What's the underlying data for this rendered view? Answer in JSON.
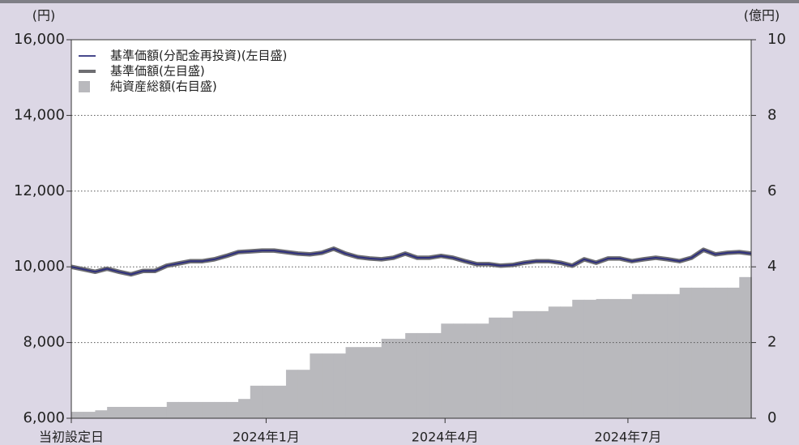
{
  "chart_data": {
    "type": "line",
    "ylabel": "(円)",
    "y2label": "(億円)",
    "x": [
      0,
      6,
      12,
      18,
      24,
      30,
      36,
      42,
      48,
      54,
      60,
      66,
      72,
      78,
      84,
      90,
      96,
      102,
      108,
      114,
      120,
      126,
      132,
      138,
      144,
      150,
      156,
      162,
      168,
      174,
      180,
      186,
      192,
      198,
      204,
      210,
      216,
      222,
      228,
      234,
      240,
      246,
      252,
      258,
      264,
      270,
      276,
      282,
      288,
      294,
      300,
      306,
      312,
      318,
      324,
      330,
      336,
      342
    ],
    "xlim": [
      0,
      342
    ],
    "xticks": [
      {
        "value": 0,
        "label": "当初設定日"
      },
      {
        "value": 98,
        "label": "2024年1月"
      },
      {
        "value": 188,
        "label": "2024年4月"
      },
      {
        "value": 280,
        "label": "2024年7月"
      }
    ],
    "ylim": [
      6000,
      16000
    ],
    "yticks": [
      {
        "value": 6000,
        "label": "6,000"
      },
      {
        "value": 8000,
        "label": "8,000"
      },
      {
        "value": 10000,
        "label": "10,000"
      },
      {
        "value": 12000,
        "label": "12,000"
      },
      {
        "value": 14000,
        "label": "14,000"
      },
      {
        "value": 16000,
        "label": "16,000"
      }
    ],
    "y2lim": [
      0,
      10
    ],
    "y2ticks": [
      0,
      2,
      4,
      6,
      8,
      10
    ],
    "grid": true,
    "legend": "upper left",
    "series": [
      {
        "name": "基準価額(分配金再投資)(左目盛)",
        "color": "#2e2f7c",
        "kind": "line",
        "values": [
          10000,
          9935,
          9870,
          9950,
          9870,
          9800,
          9890,
          9890,
          10030,
          10090,
          10150,
          10150,
          10200,
          10290,
          10390,
          10410,
          10430,
          10430,
          10390,
          10350,
          10330,
          10370,
          10480,
          10350,
          10260,
          10220,
          10200,
          10240,
          10350,
          10240,
          10240,
          10290,
          10240,
          10150,
          10070,
          10070,
          10030,
          10050,
          10110,
          10150,
          10150,
          10110,
          10030,
          10200,
          10110,
          10220,
          10220,
          10150,
          10200,
          10240,
          10200,
          10150,
          10240,
          10450,
          10330,
          10370,
          10390,
          10350
        ]
      },
      {
        "name": "基準価額(左目盛)",
        "color": "#6e6e72",
        "kind": "line",
        "values": [
          10000,
          9935,
          9870,
          9950,
          9870,
          9800,
          9890,
          9890,
          10030,
          10090,
          10150,
          10150,
          10200,
          10290,
          10390,
          10410,
          10430,
          10430,
          10390,
          10350,
          10330,
          10370,
          10480,
          10350,
          10260,
          10220,
          10200,
          10240,
          10350,
          10240,
          10240,
          10290,
          10240,
          10150,
          10070,
          10070,
          10030,
          10050,
          10110,
          10150,
          10150,
          10110,
          10030,
          10200,
          10110,
          10220,
          10220,
          10150,
          10200,
          10240,
          10200,
          10150,
          10240,
          10450,
          10330,
          10370,
          10390,
          10350
        ]
      },
      {
        "name": "純資産総額(右目盛)",
        "color": "#b9b9bd",
        "kind": "area",
        "axis": "y2",
        "values": [
          0.17,
          0.17,
          0.21,
          0.3,
          0.3,
          0.3,
          0.3,
          0.3,
          0.43,
          0.43,
          0.43,
          0.43,
          0.43,
          0.43,
          0.51,
          0.86,
          0.86,
          0.86,
          1.28,
          1.28,
          1.71,
          1.71,
          1.71,
          1.88,
          1.88,
          1.88,
          2.1,
          2.1,
          2.25,
          2.25,
          2.25,
          2.5,
          2.5,
          2.5,
          2.5,
          2.66,
          2.66,
          2.83,
          2.83,
          2.83,
          2.95,
          2.95,
          3.13,
          3.13,
          3.15,
          3.15,
          3.15,
          3.28,
          3.28,
          3.28,
          3.28,
          3.45,
          3.45,
          3.45,
          3.45,
          3.45,
          3.73,
          3.73
        ]
      }
    ]
  }
}
